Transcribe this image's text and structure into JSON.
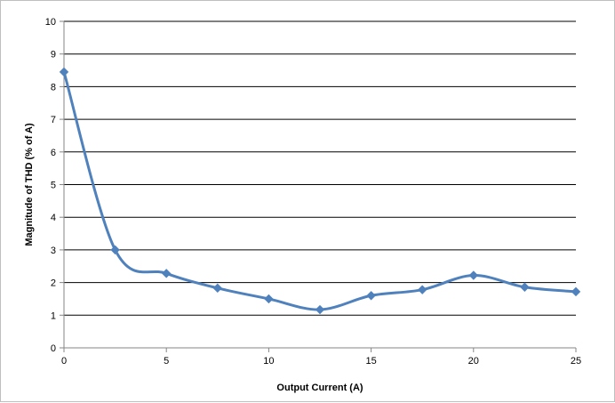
{
  "chart_data": {
    "type": "line",
    "title": "",
    "xlabel": "Output Current (A)",
    "ylabel": "Magnitude of THD (% of A)",
    "xlim": [
      0,
      25
    ],
    "ylim": [
      0,
      10
    ],
    "x_ticks": [
      0,
      5,
      10,
      15,
      20,
      25
    ],
    "y_ticks": [
      0,
      1,
      2,
      3,
      4,
      5,
      6,
      7,
      8,
      9,
      10
    ],
    "grid": "horizontal",
    "legend": "none",
    "series": [
      {
        "color": "#4f81bd",
        "marker": "diamond",
        "smooth": true,
        "x": [
          0,
          2.5,
          5,
          7.5,
          10,
          12.5,
          15,
          17.5,
          20,
          22.5,
          25
        ],
        "y": [
          8.45,
          3.0,
          2.28,
          1.83,
          1.5,
          1.17,
          1.6,
          1.78,
          2.22,
          1.86,
          1.72
        ]
      }
    ]
  }
}
